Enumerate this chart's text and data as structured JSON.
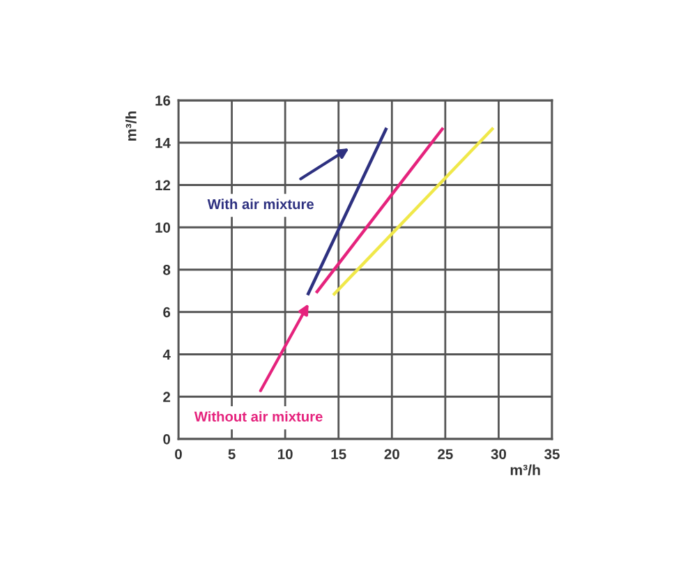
{
  "chart_data": {
    "type": "line",
    "xlabel": "m³/h",
    "ylabel": "m³/h",
    "xlim": [
      0,
      35
    ],
    "ylim": [
      0,
      16
    ],
    "xticks": [
      0,
      5,
      10,
      15,
      20,
      25,
      30,
      35
    ],
    "yticks": [
      0,
      2,
      4,
      6,
      8,
      10,
      12,
      14,
      16
    ],
    "grid": true,
    "line_style": "solid",
    "series": [
      {
        "name": "With air mixture",
        "color": "#2e3180",
        "x": [
          12.1,
          19.5
        ],
        "values": [
          6.8,
          14.7
        ]
      },
      {
        "name": "Without air mixture",
        "color": "#e5237d",
        "x": [
          12.9,
          24.8
        ],
        "values": [
          6.9,
          14.7
        ]
      },
      {
        "color": "#f0e84a",
        "x": [
          14.5,
          29.5
        ],
        "values": [
          6.8,
          14.7
        ]
      }
    ]
  }
}
